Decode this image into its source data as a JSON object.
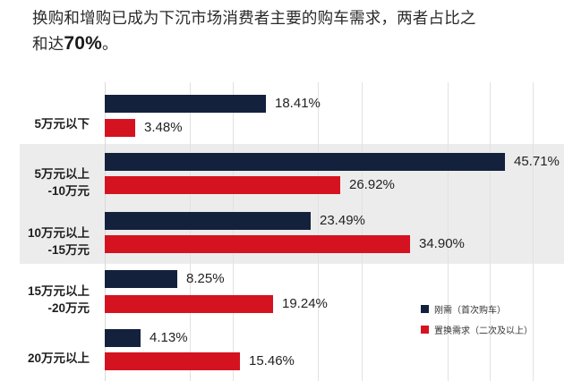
{
  "title": {
    "line1": "换购和增购已成为下沉市场消费者主要的购车需求，两者占比之",
    "line2_prefix": "和达",
    "line2_emphasis": "70%",
    "line2_suffix": "。"
  },
  "legend": {
    "items": [
      {
        "label": "刚需（首次购车）",
        "color": "#14213d"
      },
      {
        "label": "置换需求（二次及以上）",
        "color": "#d51320"
      }
    ]
  },
  "categories": [
    {
      "line1": "5万元以下",
      "line2": ""
    },
    {
      "line1": "5万元以上",
      "line2": "-10万元"
    },
    {
      "line1": "10万元以上",
      "line2": "-15万元"
    },
    {
      "line1": "15万元以上",
      "line2": "-20万元"
    },
    {
      "line1": "20万元以上",
      "line2": ""
    }
  ],
  "labels": {
    "first": [
      "18.41%",
      "45.71%",
      "23.49%",
      "8.25%",
      "4.13%"
    ],
    "replace": [
      "3.48%",
      "26.92%",
      "34.90%",
      "19.24%",
      "15.46%"
    ]
  },
  "chart_data": {
    "type": "bar",
    "orientation": "horizontal",
    "title": "换购和增购已成为下沉市场消费者主要的购车需求，两者占比之和达70%。",
    "categories": [
      "5万元以下",
      "5万元以上-10万元",
      "10万元以上-15万元",
      "15万元以上-20万元",
      "20万元以上"
    ],
    "series": [
      {
        "name": "刚需（首次购车）",
        "color": "#14213d",
        "values": [
          18.41,
          45.71,
          23.49,
          8.25,
          4.13
        ]
      },
      {
        "name": "置换需求（二次及以上）",
        "color": "#d51320",
        "values": [
          3.48,
          26.92,
          34.9,
          19.24,
          15.46
        ]
      }
    ],
    "xlabel": "",
    "ylabel": "",
    "value_unit": "%",
    "xlim": [
      0,
      52
    ],
    "grid": true,
    "legend_position": "lower right"
  }
}
